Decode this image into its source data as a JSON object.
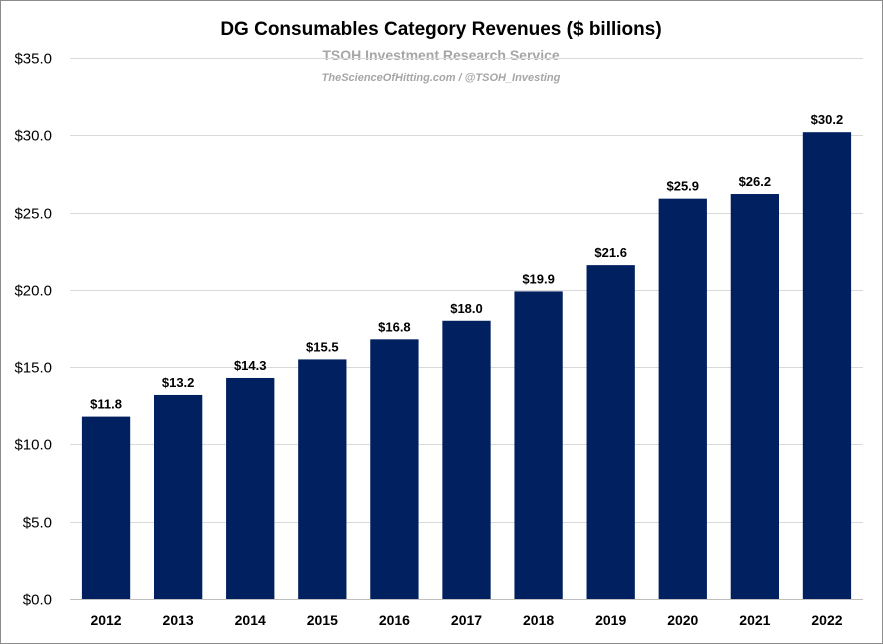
{
  "chart_data": {
    "type": "bar",
    "title": "DG Consumables Category Revenues ($ billions)",
    "subtitle": "TSOH Investment Research Service",
    "credit": "TheScienceOfHitting.com / @TSOH_Investing",
    "categories": [
      "2012",
      "2013",
      "2014",
      "2015",
      "2016",
      "2017",
      "2018",
      "2019",
      "2020",
      "2021",
      "2022"
    ],
    "values": [
      11.8,
      13.2,
      14.3,
      15.5,
      16.8,
      18.0,
      19.9,
      21.6,
      25.9,
      26.2,
      30.2
    ],
    "data_labels": [
      "$11.8",
      "$13.2",
      "$14.3",
      "$15.5",
      "$16.8",
      "$18.0",
      "$19.9",
      "$21.6",
      "$25.9",
      "$26.2",
      "$30.2"
    ],
    "ylim": [
      0,
      35
    ],
    "yticks": [
      0,
      5,
      10,
      15,
      20,
      25,
      30,
      35
    ],
    "ytick_labels": [
      "$0.0",
      "$5.0",
      "$10.0",
      "$15.0",
      "$20.0",
      "$25.0",
      "$30.0",
      "$35.0"
    ],
    "xlabel": "",
    "ylabel": "",
    "grid": true,
    "legend": "none",
    "bar_color": "#002060"
  }
}
